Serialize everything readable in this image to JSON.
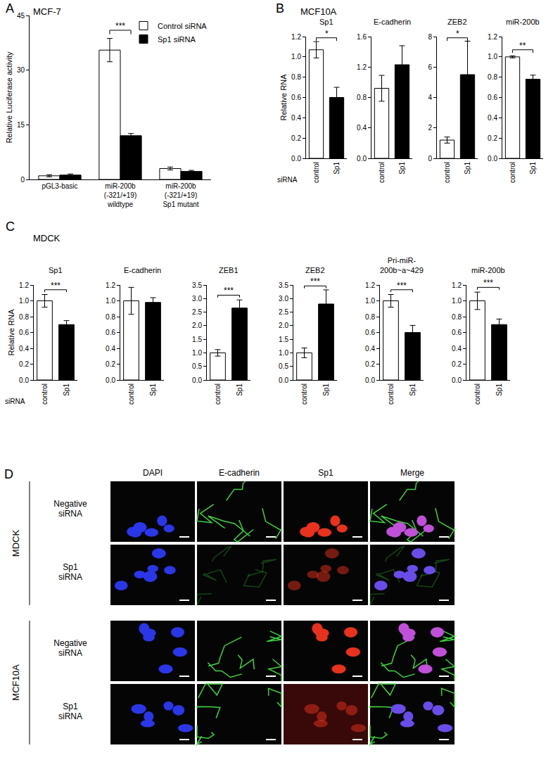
{
  "panels": [
    {
      "label": "A",
      "heading": "MCF-7"
    },
    {
      "label": "B",
      "heading": "MCF10A"
    },
    {
      "label": "C",
      "heading": "MDCK"
    },
    {
      "label": "D"
    }
  ],
  "chart_data": [
    {
      "panel": "A",
      "type": "bar",
      "categories": [
        "pGL3-basic",
        "miR-200b\n(-321/+19)\nwildtype",
        "miR-200b\n(-321/+19)\nSp1 mutant"
      ],
      "series": [
        {
          "name": "Control siRNA",
          "color": "#ffffff",
          "values": [
            1.0,
            35.5,
            3.0
          ],
          "errors": [
            0.3,
            3.2,
            0.4
          ]
        },
        {
          "name": "Sp1 siRNA",
          "color": "#000000",
          "values": [
            1.2,
            12.0,
            2.2
          ],
          "errors": [
            0.3,
            0.6,
            0.3
          ]
        }
      ],
      "ylabel": "Relative Luciferase activity",
      "ylim": [
        0,
        45
      ],
      "yticks": [
        0,
        15,
        30,
        45
      ],
      "legend": "upper right",
      "significance": [
        null,
        "***",
        null
      ]
    },
    {
      "panel": "B",
      "type": "bar",
      "title": "Sp1",
      "categories": [
        "control",
        "Sp1"
      ],
      "values": [
        1.07,
        0.6
      ],
      "errors": [
        0.08,
        0.1
      ],
      "colors": [
        "#ffffff",
        "#000000"
      ],
      "ylabel": "Relative RNA",
      "xlabel": "siRNA",
      "ylim": [
        0,
        1.2
      ],
      "yticks": [
        {
          "value": 0,
          "label": "0.0"
        },
        0.2,
        0.4,
        0.6,
        0.8,
        {
          "value": 1,
          "label": "1.0"
        },
        1.2
      ],
      "significance": "*"
    },
    {
      "panel": "B",
      "type": "bar",
      "title": "E-cadherin",
      "categories": [
        "control",
        "Sp1"
      ],
      "values": [
        0.92,
        1.23
      ],
      "errors": [
        0.17,
        0.25
      ],
      "colors": [
        "#ffffff",
        "#000000"
      ],
      "ylim": [
        0,
        1.6
      ],
      "yticks": [
        {
          "value": 0,
          "label": "0.0"
        },
        0.4,
        0.8,
        1.2,
        1.6
      ]
    },
    {
      "panel": "B",
      "type": "bar",
      "title": "ZEB2",
      "categories": [
        "control",
        "Sp1"
      ],
      "values": [
        1.2,
        5.5
      ],
      "errors": [
        0.2,
        2.2
      ],
      "colors": [
        "#ffffff",
        "#000000"
      ],
      "ylim": [
        0,
        8
      ],
      "yticks": [
        0,
        2,
        4,
        6,
        8
      ],
      "significance": "*"
    },
    {
      "panel": "B",
      "type": "bar",
      "title": "miR-200b",
      "categories": [
        "control",
        "Sp1"
      ],
      "values": [
        1.0,
        0.78
      ],
      "errors": [
        0.01,
        0.04
      ],
      "colors": [
        "#ffffff",
        "#000000"
      ],
      "ylim": [
        0,
        1.2
      ],
      "yticks": [
        {
          "value": 0,
          "label": "0.0"
        },
        0.2,
        0.4,
        0.6,
        0.8,
        {
          "value": 1,
          "label": "1.0"
        },
        1.2
      ],
      "significance": "**"
    },
    {
      "panel": "C",
      "type": "bar",
      "title": "Sp1",
      "categories": [
        "control",
        "Sp1"
      ],
      "values": [
        1.0,
        0.7
      ],
      "errors": [
        0.08,
        0.05
      ],
      "colors": [
        "#ffffff",
        "#000000"
      ],
      "ylabel": "Relative RNA",
      "xlabel": "siRNA",
      "ylim": [
        0,
        1.2
      ],
      "yticks": [
        {
          "value": 0,
          "label": "0.0"
        },
        0.2,
        0.4,
        0.6,
        0.8,
        {
          "value": 1,
          "label": "1.0"
        },
        1.2
      ],
      "significance": "***"
    },
    {
      "panel": "C",
      "type": "bar",
      "title": "E-cadherin",
      "categories": [
        "control",
        "Sp1"
      ],
      "values": [
        1.0,
        0.98
      ],
      "errors": [
        0.17,
        0.06
      ],
      "colors": [
        "#ffffff",
        "#000000"
      ],
      "ylim": [
        0,
        1.2
      ],
      "yticks": [
        {
          "value": 0,
          "label": "0.0"
        },
        0.2,
        0.4,
        0.6,
        0.8,
        {
          "value": 1,
          "label": "1.0"
        },
        1.2
      ]
    },
    {
      "panel": "C",
      "type": "bar",
      "title": "ZEB1",
      "categories": [
        "control",
        "Sp1"
      ],
      "values": [
        1.0,
        2.65
      ],
      "errors": [
        0.12,
        0.3
      ],
      "colors": [
        "#ffffff",
        "#000000"
      ],
      "ylim": [
        0,
        3.5
      ],
      "yticks": [
        {
          "value": 0,
          "label": "0.0"
        },
        0.5,
        {
          "value": 1,
          "label": "1.0"
        },
        1.5,
        {
          "value": 2,
          "label": "2.0"
        },
        2.5,
        {
          "value": 3,
          "label": "3.0"
        },
        3.5
      ],
      "significance": "***"
    },
    {
      "panel": "C",
      "type": "bar",
      "title": "ZEB2",
      "categories": [
        "control",
        "Sp1"
      ],
      "values": [
        1.0,
        2.8
      ],
      "errors": [
        0.18,
        0.52
      ],
      "colors": [
        "#ffffff",
        "#000000"
      ],
      "ylim": [
        0,
        3.5
      ],
      "yticks": [
        {
          "value": 0,
          "label": "0.0"
        },
        0.5,
        {
          "value": 1,
          "label": "1.0"
        },
        1.5,
        {
          "value": 2,
          "label": "2.0"
        },
        2.5,
        {
          "value": 3,
          "label": "3.0"
        },
        3.5
      ],
      "significance": "***"
    },
    {
      "panel": "C",
      "type": "bar",
      "title": "Pri-miR-\n200b~a~429",
      "categories": [
        "control",
        "Sp1"
      ],
      "values": [
        1.0,
        0.6
      ],
      "errors": [
        0.08,
        0.09
      ],
      "colors": [
        "#ffffff",
        "#000000"
      ],
      "ylim": [
        0,
        1.2
      ],
      "yticks": [
        {
          "value": 0,
          "label": "0.0"
        },
        0.2,
        0.4,
        0.6,
        0.8,
        {
          "value": 1,
          "label": "1.0"
        },
        1.2
      ],
      "significance": "***"
    },
    {
      "panel": "C",
      "type": "bar",
      "title": "miR-200b",
      "categories": [
        "control",
        "Sp1"
      ],
      "values": [
        1.0,
        0.7
      ],
      "errors": [
        0.11,
        0.07
      ],
      "colors": [
        "#ffffff",
        "#000000"
      ],
      "ylim": [
        0,
        1.2
      ],
      "yticks": [
        {
          "value": 0,
          "label": "0.0"
        },
        0.2,
        0.4,
        0.6,
        0.8,
        {
          "value": 1,
          "label": "1.0"
        },
        1.2
      ],
      "significance": "***"
    }
  ],
  "images": {
    "panel": "D",
    "columns": [
      "DAPI",
      "E-cadherin",
      "Sp1",
      "Merge"
    ],
    "groups": [
      {
        "name": "MDCK",
        "rows": [
          "Negative\nsiRNA",
          "Sp1\nsiRNA"
        ]
      },
      {
        "name": "MCF10A",
        "rows": [
          "Negative\nsiRNA",
          "Sp1\nsiRNA"
        ]
      }
    ]
  }
}
